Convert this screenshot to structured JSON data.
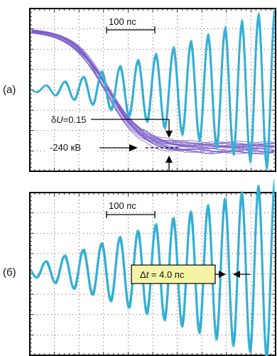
{
  "chart_data": [
    {
      "type": "line",
      "panel_label": "(a)",
      "scale_bar_label": "100 пс",
      "annotations": {
        "delta_u_symbol": "δ",
        "delta_u_var": "U",
        "delta_u_value": "=0.15",
        "voltage_label": "-240 кВ"
      },
      "grid": true,
      "series": [
        {
          "color": "#7b5cc8",
          "shape": "falling step from high level to about -240 kV",
          "traces": 20
        },
        {
          "color": "#39b4d8",
          "shape": "oscillation with growing amplitude",
          "traces": 20
        }
      ]
    },
    {
      "type": "line",
      "panel_label": "(б)",
      "scale_bar_label": "100 пс",
      "annotations": {
        "delta_t_symbol": "Δ",
        "delta_t_var": "t",
        "delta_t_value": " = 4.0 пс"
      },
      "grid": true,
      "series": [
        {
          "color": "#39b4d8",
          "shape": "oscillation with growing amplitude",
          "traces": 20
        }
      ]
    }
  ],
  "colors": {
    "purple_traces": "#7b5cc8",
    "cyan_traces": "#39b4d8",
    "cyan_highlight": "#1c8fb5",
    "label_box_fill": "#f4f4a6"
  }
}
